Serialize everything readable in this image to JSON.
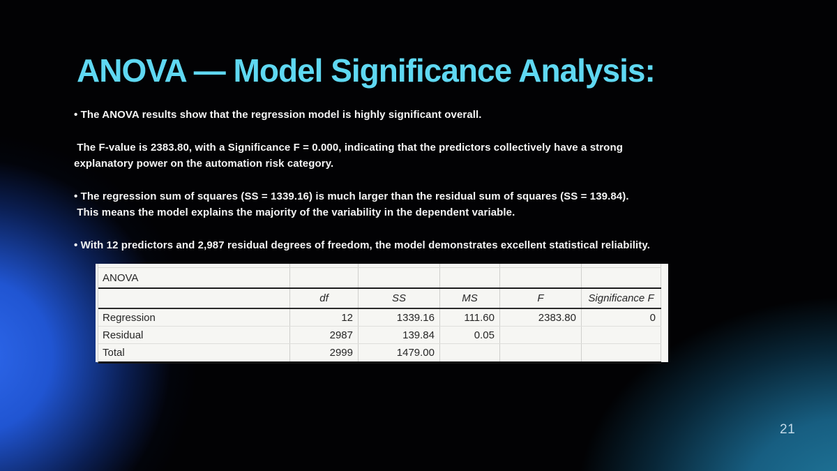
{
  "slide": {
    "title": "ANOVA — Model Significance Analysis:",
    "page_number": "21",
    "accent_color": "#5fd8f2",
    "glow_left_color": "#2e68ec",
    "glow_right_color": "#20789c"
  },
  "bullets": {
    "p1": {
      "l1": "• The ANOVA results show that the regression model is highly significant overall."
    },
    "p2": {
      "l1": " The F-value is 2383.80, with a Significance F = 0.000, indicating that the predictors collectively have a strong",
      "l2": "explanatory power on the automation risk category."
    },
    "p3": {
      "l1": "• The regression sum of squares (SS = 1339.16) is much larger than the residual sum of squares (SS = 139.84).",
      "l2": " This means the model explains the majority of the variability in the dependent variable."
    },
    "p4": {
      "l1": "• With 12 predictors and 2,987 residual degrees of freedom, the model demonstrates excellent statistical reliability."
    }
  },
  "table": {
    "title": "ANOVA",
    "headers": [
      "df",
      "SS",
      "MS",
      "F",
      "Significance F"
    ],
    "rows": [
      {
        "label": "Regression",
        "values": [
          "12",
          "1339.16",
          "111.60",
          "2383.80",
          "0"
        ]
      },
      {
        "label": "Residual",
        "values": [
          "2987",
          "139.84",
          "0.05",
          "",
          ""
        ]
      },
      {
        "label": "Total",
        "values": [
          "2999",
          "1479.00",
          "",
          "",
          ""
        ]
      }
    ]
  }
}
